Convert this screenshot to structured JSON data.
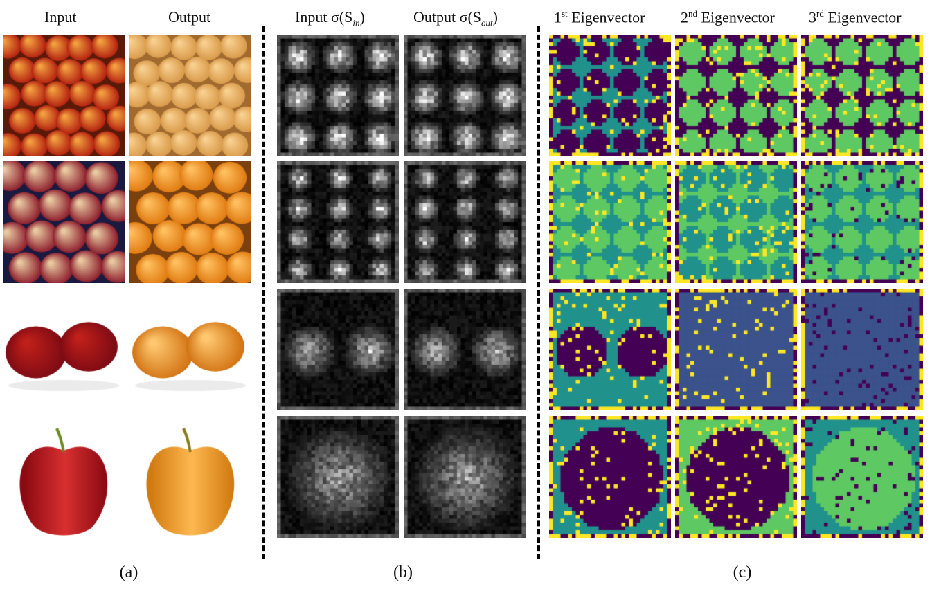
{
  "headers": {
    "a_input": "Input",
    "a_output": "Output",
    "b_input": "Input σ(S",
    "b_input_sub": "in",
    "b_output": "Output σ(S",
    "b_output_sub": "out",
    "c1_num": "1",
    "c1_sup": "st",
    "c1_word": " Eigenvector",
    "c2_num": "2",
    "c2_sup": "nd",
    "c2_word": " Eigenvector",
    "c3_num": "3",
    "c3_sup": "rd",
    "c3_word": " Eigenvector"
  },
  "panel_labels": {
    "a": "(a)",
    "b": "(b)",
    "c": "(c)"
  },
  "colors": {
    "apple_red": "#c0201a",
    "orange": "#f0a030",
    "viridis_dark": "#440154",
    "viridis_mid": "#21918c",
    "viridis_green": "#5ec962",
    "viridis_yellow": "#fde725"
  }
}
